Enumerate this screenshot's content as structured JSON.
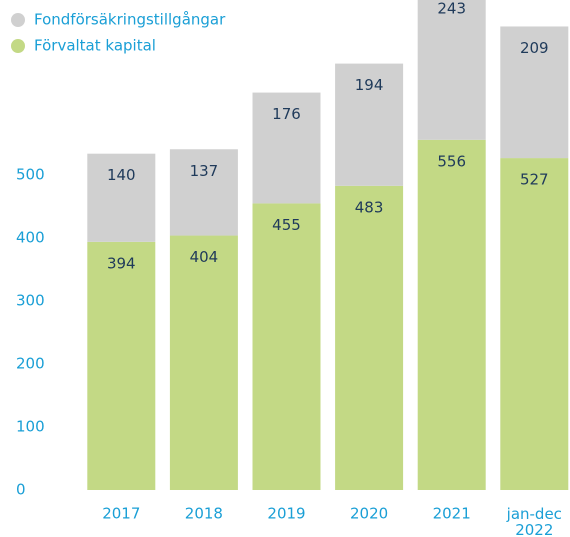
{
  "chart_data": {
    "type": "stacked_bar",
    "categories": [
      "2017",
      "2018",
      "2019",
      "2020",
      "2021",
      "jan-dec 2022"
    ],
    "series": [
      {
        "name": "Förvaltat kapital",
        "color": "#c3d985",
        "values": [
          394,
          404,
          455,
          483,
          556,
          527
        ]
      },
      {
        "name": "Fondförsäkringstillgångar",
        "color": "#d0d0d0",
        "values": [
          140,
          137,
          176,
          194,
          243,
          209
        ]
      }
    ],
    "ylim": [
      0,
      778
    ],
    "yticks": [
      0,
      100,
      200,
      300,
      400,
      500
    ],
    "grid": false,
    "legend": "top-left"
  }
}
